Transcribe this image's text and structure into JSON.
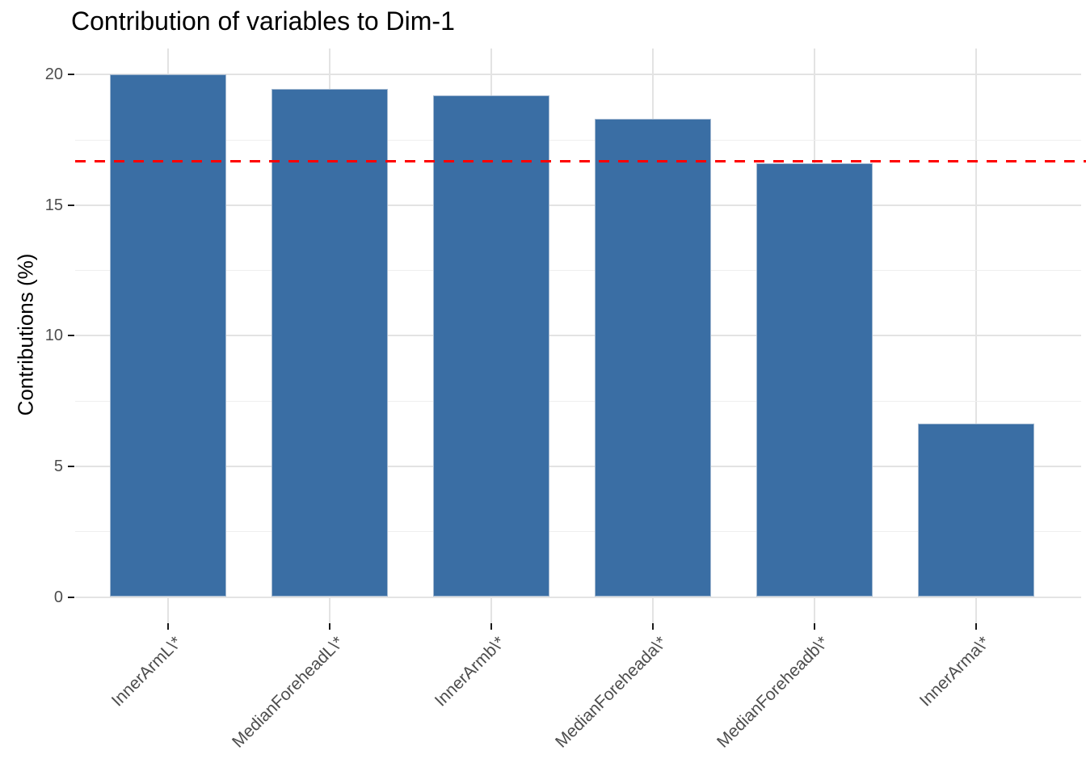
{
  "title": "Contribution of variables to Dim-1",
  "y_axis": {
    "label": "Contributions (%)",
    "tick_labels": [
      "0",
      "5",
      "10",
      "15",
      "20"
    ]
  },
  "colors": {
    "bar_fill": "#3a6ea4",
    "bar_edge": "#a3b9d1",
    "reference_line": "#ff0000",
    "grid_major": "#e3e3e3",
    "grid_minor": "#efefef",
    "tick_text": "#4d4d4d",
    "tick_mark": "#1a1a1a",
    "title_text": "#000000",
    "background": "#ffffff"
  },
  "chart_data": {
    "type": "bar",
    "title": "Contribution of variables to Dim-1",
    "xlabel": "",
    "ylabel": "Contributions (%)",
    "categories": [
      "InnerArmL\\*",
      "MedianForeheadL\\*",
      "InnerArmb\\*",
      "MedianForeheada\\*",
      "MedianForeheadb\\*",
      "InnerArma\\*"
    ],
    "values": [
      20.0,
      19.45,
      19.2,
      18.3,
      16.6,
      6.65
    ],
    "ylim": [
      0,
      20
    ],
    "y_major_ticks": [
      0,
      5,
      10,
      15,
      20
    ],
    "y_minor_ticks": [
      2.5,
      7.5,
      12.5,
      17.5
    ],
    "reference_line": {
      "value": 16.67,
      "style": "dashed",
      "color": "#ff0000"
    },
    "bar_color": "#3a6ea4",
    "grid": true,
    "legend_position": "none",
    "x_tick_rotation": 45
  }
}
